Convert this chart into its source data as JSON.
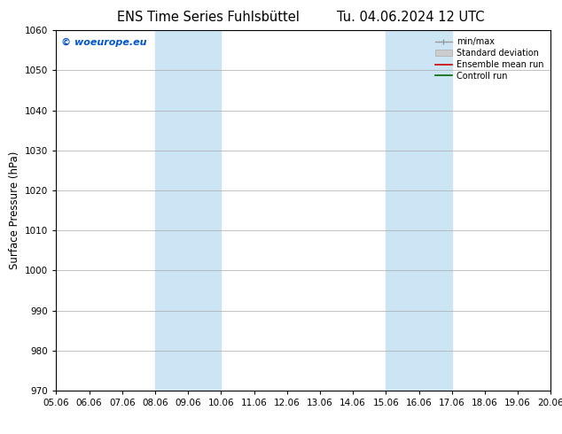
{
  "title": "ENS Time Series Fuhlsbüttel      Tu. 04.06.2024 12 UTC",
  "title_left": "ENS Time Series Fuhlsbüttel",
  "title_right": "Tu. 04.06.2024 12 UTC",
  "ylabel": "Surface Pressure (hPa)",
  "ylim": [
    970,
    1060
  ],
  "yticks": [
    970,
    980,
    990,
    1000,
    1010,
    1020,
    1030,
    1040,
    1050,
    1060
  ],
  "x_labels": [
    "05.06",
    "06.06",
    "07.06",
    "08.06",
    "09.06",
    "10.06",
    "11.06",
    "12.06",
    "13.06",
    "14.06",
    "15.06",
    "16.06",
    "17.06",
    "18.06",
    "19.06",
    "20.06"
  ],
  "x_values": [
    0,
    1,
    2,
    3,
    4,
    5,
    6,
    7,
    8,
    9,
    10,
    11,
    12,
    13,
    14,
    15
  ],
  "shaded_bands": [
    {
      "xmin": 3,
      "xmax": 5,
      "color": "#cce5f5"
    },
    {
      "xmin": 10,
      "xmax": 12,
      "color": "#cce5f5"
    }
  ],
  "watermark": "© woeurope.eu",
  "watermark_color": "#0055cc",
  "bg_color": "#ffffff",
  "grid_color": "#aaaaaa",
  "title_fontsize": 10.5,
  "label_fontsize": 8.5,
  "tick_fontsize": 7.5
}
